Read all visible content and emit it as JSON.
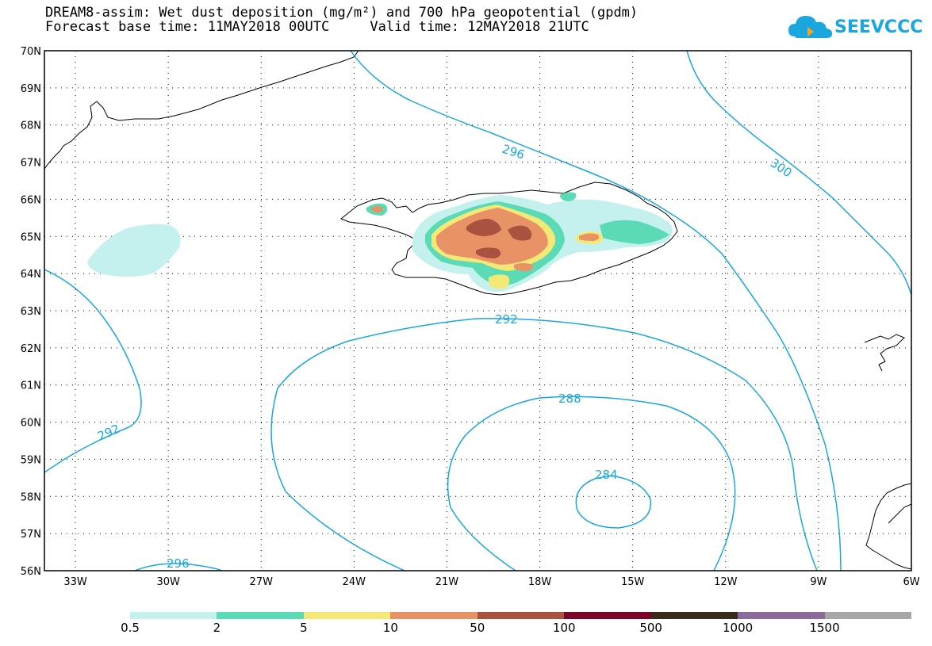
{
  "header": {
    "line1": "DREAM8-assim: Wet dust deposition (mg/m²) and 700 hPa geopotential (gpdm)",
    "line2": "Forecast base time: 11MAY2018 00UTC     Valid time: 12MAY2018 21UTC"
  },
  "logo": {
    "text": "SEEVCCC",
    "color": "#1aa7e0",
    "icon": "cloud-icon"
  },
  "map": {
    "lon_range": [
      -34.0,
      -6.0
    ],
    "lat_range": [
      56.0,
      70.0
    ],
    "lon_ticks": [
      "33W",
      "30W",
      "27W",
      "24W",
      "21W",
      "18W",
      "15W",
      "12W",
      "9W",
      "6W"
    ],
    "lat_ticks": [
      "56N",
      "57N",
      "58N",
      "59N",
      "60N",
      "61N",
      "62N",
      "63N",
      "64N",
      "65N",
      "66N",
      "67N",
      "68N",
      "69N",
      "70N"
    ],
    "grid": "dotted",
    "contour_color": "#1aa7e0",
    "contour_labels": [
      "296",
      "300",
      "292",
      "288",
      "284",
      "292",
      "296"
    ]
  },
  "colorbar": {
    "labels": [
      "0.5",
      "2",
      "5",
      "10",
      "50",
      "100",
      "500",
      "1000",
      "1500"
    ],
    "colors": [
      "#c4f1ee",
      "#5adbb5",
      "#f4e877",
      "#e89266",
      "#a8523f",
      "#7a0628",
      "#3a2a1a",
      "#8c6b9a",
      "#a7a7a7"
    ]
  }
}
